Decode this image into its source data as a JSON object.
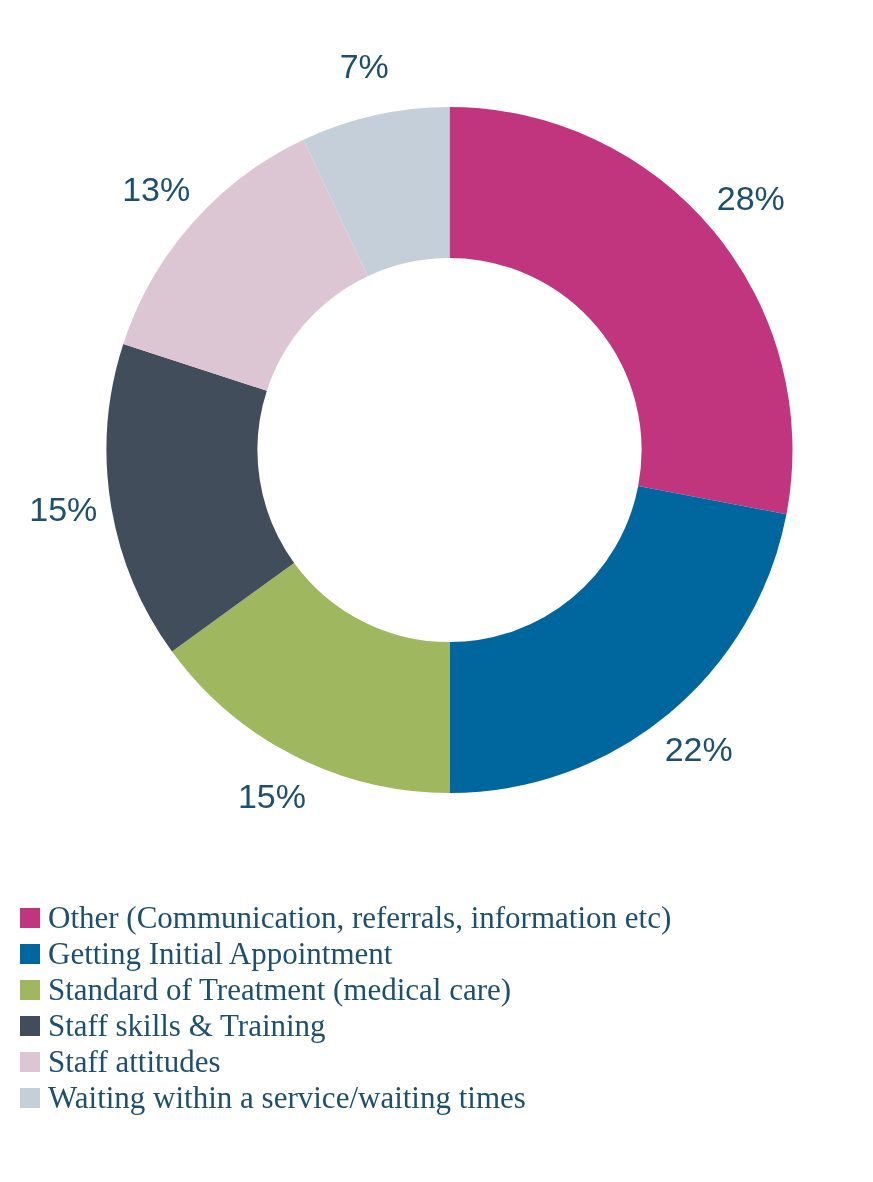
{
  "chart_data": {
    "type": "donut",
    "categories": [
      "Other (Communication, referrals, information etc)",
      "Getting Initial Appointment",
      "Standard of Treatment (medical care)",
      "Staff skills & Training",
      "Staff attitudes",
      "Waiting within a service/waiting times"
    ],
    "values": [
      28,
      22,
      15,
      15,
      13,
      7
    ],
    "colors": [
      "#c0357e",
      "#00679e",
      "#9fb85f",
      "#414d5a",
      "#dcc6d3",
      "#c5cfd9"
    ],
    "value_labels": [
      "28%",
      "22%",
      "15%",
      "15%",
      "13%",
      "7%"
    ],
    "legend": "bottom"
  }
}
